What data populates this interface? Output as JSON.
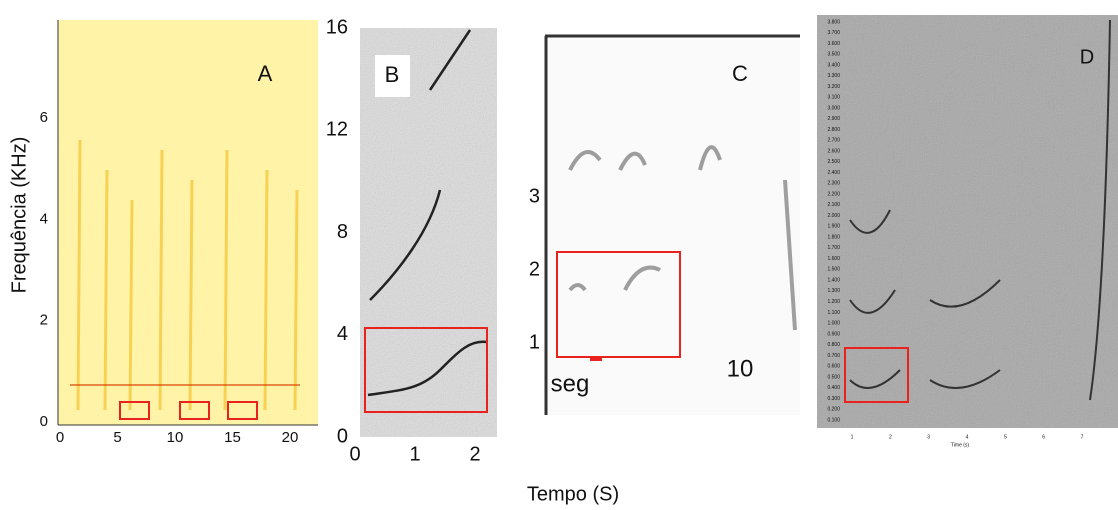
{
  "y_axis_label": "Frequência (KHz)",
  "x_axis_label": "Tempo (S)",
  "panels": [
    {
      "letter": "A",
      "yticks": [
        "0",
        "2",
        "4",
        "6"
      ],
      "xticks": [
        "0",
        "5",
        "10",
        "15",
        "20"
      ]
    },
    {
      "letter": "B",
      "yticks": [
        "0",
        "4",
        "8",
        "12",
        "16"
      ],
      "xticks": [
        "0",
        "1",
        "2"
      ]
    },
    {
      "letter": "C",
      "yticks": [
        "1",
        "2",
        "3"
      ],
      "unit": "seg",
      "xticks": [
        "10"
      ]
    },
    {
      "letter": "D",
      "yticks": [
        "0.100",
        "0.200",
        "0.300",
        "0.400",
        "0.500",
        "0.600",
        "0.700",
        "0.800",
        "0.900",
        "1.000",
        "1.100",
        "1.200",
        "1.300",
        "1.400",
        "1.500",
        "1.600",
        "1.700",
        "1.800",
        "1.900",
        "2.000",
        "2.100",
        "2.200",
        "2.300",
        "2.400",
        "2.500",
        "2.600",
        "2.700",
        "2.800",
        "2.900",
        "3.000",
        "3.100",
        "3.200",
        "3.300",
        "3.400",
        "3.500",
        "3.600",
        "3.700",
        "3.800"
      ],
      "xticks": [
        "1",
        "2",
        "3",
        "4",
        "5",
        "6",
        "7"
      ],
      "xlabel": "Time (s)"
    }
  ]
}
